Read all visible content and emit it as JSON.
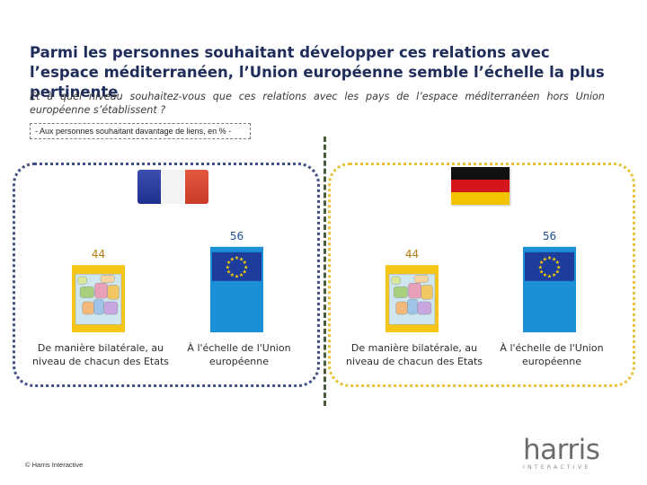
{
  "header": {
    "title": "Parmi les personnes souhaitant développer ces relations avec l’espace méditerranéen, l’Union européenne semble l’échelle la plus pertinente",
    "subtitle": "Et à quel niveau souhaitez-vous que ces relations avec les pays de l’espace méditerranéen hors Union européenne s’établissent ?",
    "note": "- Aux personnes souhaitant davantage de liens, en % -"
  },
  "colors": {
    "bar_bilateral": "#f5c518",
    "bar_eu": "#1b8fd8",
    "value_bilateral": "#b07c10",
    "value_eu": "#1f4e9a",
    "france_flag": [
      "#2a3c9e",
      "#f3f3f3",
      "#d64a34"
    ],
    "germany_flag": [
      "#111111",
      "#d4161c",
      "#f3c300"
    ],
    "france_panel": "#3f5186",
    "germany_panel": "#e7c23a"
  },
  "icons": {
    "bar_bilateral": "europe-map-icon",
    "bar_eu": "eu-flag-icon"
  },
  "chart_data": [
    {
      "type": "bar",
      "flag": "france-flag-icon",
      "categories": [
        "De manière bilatérale, au niveau de chacun des Etats",
        "À l'échelle de l'Union européenne"
      ],
      "values": [
        44,
        56
      ],
      "ylim": [
        0,
        100
      ],
      "grid": false
    },
    {
      "type": "bar",
      "flag": "germany-flag-icon",
      "categories": [
        "De manière bilatérale, au niveau de chacun des Etats",
        "À l'échelle de l'Union européenne"
      ],
      "values": [
        44,
        56
      ],
      "ylim": [
        0,
        100
      ],
      "grid": false
    }
  ],
  "footer": {
    "copyright": "© Harris Interactive",
    "logo_word": "harris",
    "logo_sub": "INTERACTIVE"
  }
}
